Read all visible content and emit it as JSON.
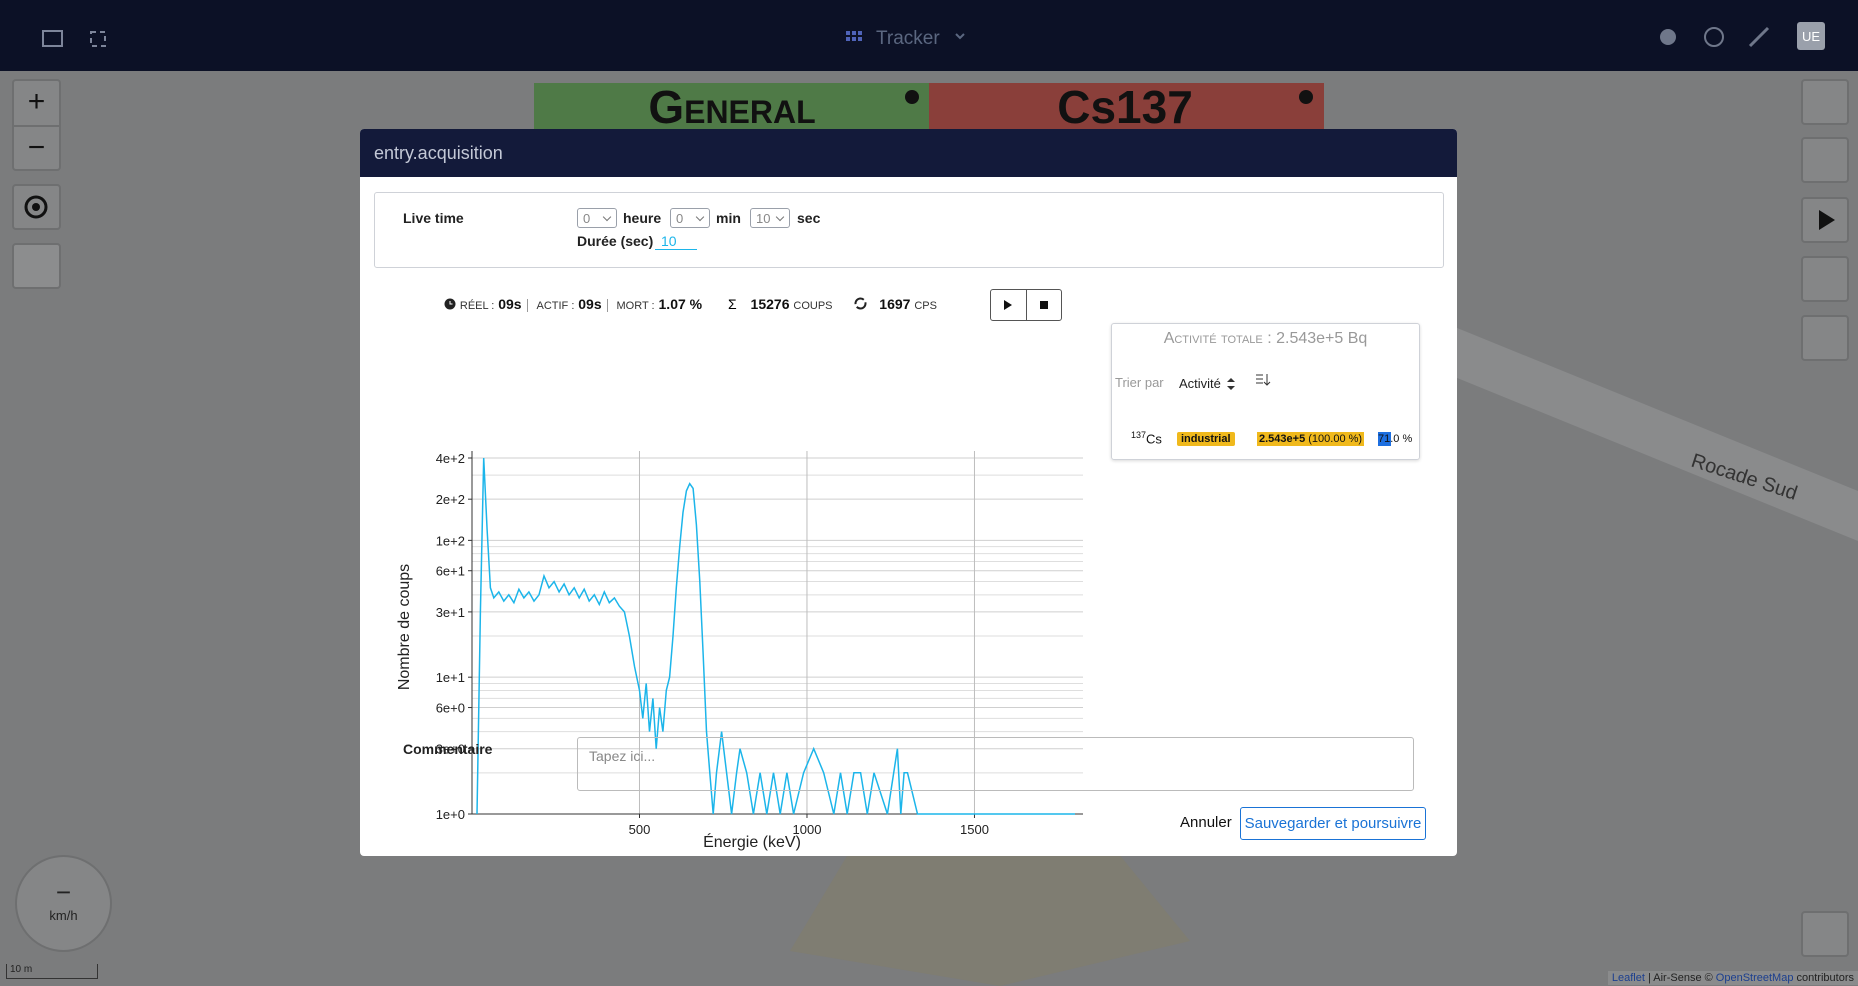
{
  "header": {
    "app_title": "Tracker",
    "user_initials": "UE"
  },
  "map": {
    "zoom_in": "+",
    "zoom_out": "−",
    "tile_general": "General",
    "tile_cs": "Cs137",
    "road": "Rocade Sud",
    "speed_value": "−",
    "speed_unit": "km/h",
    "scale": "10 m",
    "attribution_leaflet": "Leaflet",
    "attribution_mid": "| Air-Sense ©",
    "attribution_osm": "OpenStreetMap",
    "attribution_end": "contributors"
  },
  "modal": {
    "title": "entry.acquisition",
    "live_time_label": "Live time",
    "hour_value": "0",
    "hour_unit": "heure",
    "min_value": "0",
    "min_unit": "min",
    "sec_value": "10",
    "sec_unit": "sec",
    "duration_label": "Durée (sec)",
    "duration_value": "10",
    "stats": {
      "real_label": "RÉEL :",
      "real_value": "09s",
      "active_label": "ACTIF :",
      "active_value": "09s",
      "dead_label": "MORT :",
      "dead_value": "1.07 %",
      "sum_symbol": "Σ",
      "counts_value": "15276",
      "counts_unit": "COUPS",
      "cps_value": "1697",
      "cps_unit": "CPS"
    },
    "activity": {
      "total_label": "Activité totale :",
      "total_value": "2.543e+5 Bq",
      "sort_label": "Trier par",
      "sort_value": "Activité",
      "rows": [
        {
          "mass": "137",
          "element": "Cs",
          "tag": "industrial",
          "activity": "2.543e+5",
          "share": "(100.00 %)",
          "confidence": "71.0 %"
        }
      ]
    },
    "comment_label": "Commentaire",
    "comment_placeholder": "Tapez ici...",
    "cancel": "Annuler",
    "save": "Sauvegarder et poursuivre"
  },
  "chart_data": {
    "type": "line",
    "x_label": "Énergie (keV)",
    "y_label": "Nombre de coups",
    "ylog": true,
    "grid": true,
    "xlim": [
      0,
      1824
    ],
    "xticks": [
      500,
      1000,
      1500
    ],
    "ylim": [
      1,
      450
    ],
    "yticks": [
      {
        "value": 1,
        "label": "1e+0"
      },
      {
        "value": 3,
        "label": "3e+0"
      },
      {
        "value": 6,
        "label": "6e+0"
      },
      {
        "value": 10,
        "label": "1e+1"
      },
      {
        "value": 30,
        "label": "3e+1"
      },
      {
        "value": 60,
        "label": "6e+1"
      },
      {
        "value": 100,
        "label": "1e+2"
      },
      {
        "value": 200,
        "label": "2e+2"
      },
      {
        "value": 400,
        "label": "4e+2"
      }
    ],
    "y_minor_ticks": [
      2,
      4,
      5,
      7,
      8,
      9,
      20,
      40,
      50,
      70,
      80,
      90,
      300
    ],
    "x": [
      15,
      25,
      35,
      45,
      55,
      65,
      80,
      95,
      110,
      125,
      140,
      155,
      170,
      185,
      200,
      215,
      230,
      245,
      260,
      275,
      290,
      305,
      320,
      335,
      350,
      365,
      380,
      395,
      410,
      425,
      440,
      455,
      470,
      485,
      500,
      510,
      520,
      530,
      540,
      550,
      560,
      570,
      580,
      590,
      600,
      610,
      620,
      630,
      640,
      650,
      660,
      670,
      680,
      690,
      700,
      710,
      720,
      730,
      745,
      760,
      775,
      790,
      800,
      820,
      840,
      860,
      880,
      900,
      920,
      940,
      960,
      990,
      1020,
      1050,
      1080,
      1100,
      1120,
      1140,
      1160,
      1180,
      1200,
      1240,
      1270,
      1280,
      1290,
      1300,
      1330,
      1370,
      1420,
      1480,
      1550,
      1620,
      1680,
      1750,
      1800
    ],
    "series": [
      {
        "color": "#1cb5ea",
        "values": [
          1,
          30,
          400,
          120,
          45,
          38,
          42,
          36,
          40,
          35,
          44,
          38,
          42,
          36,
          40,
          55,
          45,
          50,
          42,
          48,
          40,
          45,
          38,
          44,
          36,
          40,
          34,
          42,
          35,
          38,
          33,
          30,
          20,
          12,
          8,
          5,
          9,
          4,
          7,
          3,
          6,
          4,
          8,
          10,
          20,
          45,
          90,
          160,
          230,
          260,
          240,
          130,
          50,
          15,
          4,
          2,
          1,
          2,
          4,
          2,
          1,
          2,
          3,
          2,
          1,
          2,
          1,
          2,
          1,
          2,
          1,
          2,
          3,
          2,
          1,
          2,
          1,
          2,
          2,
          1,
          2,
          1,
          3,
          1,
          2,
          2,
          1,
          1,
          1,
          1,
          1,
          1,
          1,
          1,
          1
        ]
      }
    ]
  }
}
